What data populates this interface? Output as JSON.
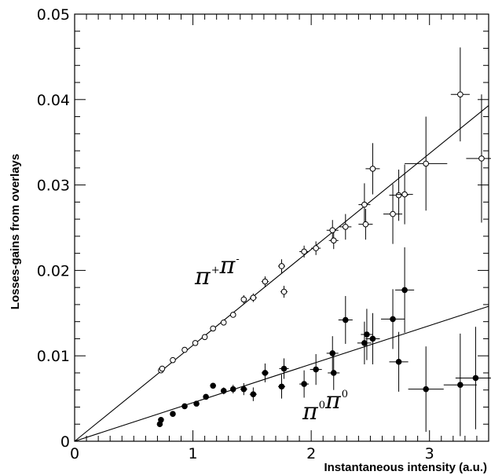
{
  "chart_data": {
    "type": "scatter",
    "title": "",
    "xlabel": "Instantaneous intensity (a.u.)",
    "ylabel": "Losses-gains from overlays",
    "xlim": [
      0,
      3.5
    ],
    "ylim": [
      0,
      0.05
    ],
    "x_ticks": [
      "0",
      "1",
      "2",
      "3"
    ],
    "y_ticks": [
      "0",
      "0.01",
      "0.02",
      "0.03",
      "0.04",
      "0.05"
    ],
    "x_tick_values": [
      0,
      1,
      2,
      3
    ],
    "y_tick_values": [
      0,
      0.01,
      0.02,
      0.03,
      0.04,
      0.05
    ],
    "grid": false,
    "series": [
      {
        "name": "π⁺π⁻",
        "label_main": [
          "π",
          "π"
        ],
        "label_sup": [
          "+",
          "-"
        ],
        "marker": "open-circle",
        "fit_line": [
          [
            0,
            0
          ],
          [
            3.5,
            0.0393
          ]
        ],
        "points": [
          {
            "x": 0.73,
            "y": 0.0083,
            "xerr": 0.02,
            "yerr": 0.0003
          },
          {
            "x": 0.74,
            "y": 0.0085,
            "xerr": 0.02,
            "yerr": 0.0003
          },
          {
            "x": 0.83,
            "y": 0.0095,
            "xerr": 0.02,
            "yerr": 0.0003
          },
          {
            "x": 0.93,
            "y": 0.0107,
            "xerr": 0.02,
            "yerr": 0.0003
          },
          {
            "x": 1.02,
            "y": 0.0115,
            "xerr": 0.02,
            "yerr": 0.0003
          },
          {
            "x": 1.1,
            "y": 0.0122,
            "xerr": 0.02,
            "yerr": 0.0003
          },
          {
            "x": 1.17,
            "y": 0.0132,
            "xerr": 0.02,
            "yerr": 0.0003
          },
          {
            "x": 1.26,
            "y": 0.0139,
            "xerr": 0.02,
            "yerr": 0.0003
          },
          {
            "x": 1.34,
            "y": 0.0148,
            "xerr": 0.02,
            "yerr": 0.0003
          },
          {
            "x": 1.43,
            "y": 0.0166,
            "xerr": 0.02,
            "yerr": 0.0005
          },
          {
            "x": 1.51,
            "y": 0.0168,
            "xerr": 0.03,
            "yerr": 0.0005
          },
          {
            "x": 1.61,
            "y": 0.0187,
            "xerr": 0.03,
            "yerr": 0.0006
          },
          {
            "x": 1.75,
            "y": 0.0205,
            "xerr": 0.03,
            "yerr": 0.0008
          },
          {
            "x": 1.77,
            "y": 0.0175,
            "xerr": 0.03,
            "yerr": 0.0007
          },
          {
            "x": 1.94,
            "y": 0.0222,
            "xerr": 0.04,
            "yerr": 0.0007
          },
          {
            "x": 2.04,
            "y": 0.0226,
            "xerr": 0.04,
            "yerr": 0.0008
          },
          {
            "x": 2.18,
            "y": 0.0247,
            "xerr": 0.05,
            "yerr": 0.0012
          },
          {
            "x": 2.19,
            "y": 0.0235,
            "xerr": 0.04,
            "yerr": 0.001
          },
          {
            "x": 2.29,
            "y": 0.0251,
            "xerr": 0.05,
            "yerr": 0.0015
          },
          {
            "x": 2.45,
            "y": 0.0277,
            "xerr": 0.05,
            "yerr": 0.0025
          },
          {
            "x": 2.46,
            "y": 0.0254,
            "xerr": 0.06,
            "yerr": 0.0018
          },
          {
            "x": 2.52,
            "y": 0.0319,
            "xerr": 0.06,
            "yerr": 0.003
          },
          {
            "x": 2.69,
            "y": 0.0266,
            "xerr": 0.08,
            "yerr": 0.0035
          },
          {
            "x": 2.74,
            "y": 0.0288,
            "xerr": 0.08,
            "yerr": 0.003
          },
          {
            "x": 2.79,
            "y": 0.0289,
            "xerr": 0.07,
            "yerr": 0.0035
          },
          {
            "x": 2.97,
            "y": 0.0325,
            "xerr": 0.18,
            "yerr": 0.0055
          },
          {
            "x": 3.26,
            "y": 0.0406,
            "xerr": 0.08,
            "yerr": 0.0055
          },
          {
            "x": 3.44,
            "y": 0.0331,
            "xerr": 0.13,
            "yerr": 0.0075
          }
        ]
      },
      {
        "name": "π⁰π⁰",
        "label_main": [
          "π",
          "π"
        ],
        "label_sup": [
          "0",
          "0"
        ],
        "marker": "filled-circle",
        "fit_line": [
          [
            0,
            0
          ],
          [
            3.5,
            0.0158
          ]
        ],
        "points": [
          {
            "x": 0.72,
            "y": 0.002,
            "xerr": 0.02,
            "yerr": 0.0003
          },
          {
            "x": 0.73,
            "y": 0.0025,
            "xerr": 0.02,
            "yerr": 0.0003
          },
          {
            "x": 0.83,
            "y": 0.0032,
            "xerr": 0.02,
            "yerr": 0.0003
          },
          {
            "x": 0.93,
            "y": 0.0041,
            "xerr": 0.02,
            "yerr": 0.0003
          },
          {
            "x": 1.03,
            "y": 0.0044,
            "xerr": 0.02,
            "yerr": 0.0003
          },
          {
            "x": 1.11,
            "y": 0.0052,
            "xerr": 0.02,
            "yerr": 0.0003
          },
          {
            "x": 1.17,
            "y": 0.0065,
            "xerr": 0.02,
            "yerr": 0.0003
          },
          {
            "x": 1.26,
            "y": 0.0059,
            "xerr": 0.02,
            "yerr": 0.0004
          },
          {
            "x": 1.34,
            "y": 0.0061,
            "xerr": 0.02,
            "yerr": 0.0005
          },
          {
            "x": 1.43,
            "y": 0.0061,
            "xerr": 0.03,
            "yerr": 0.0007
          },
          {
            "x": 1.51,
            "y": 0.0055,
            "xerr": 0.03,
            "yerr": 0.0008
          },
          {
            "x": 1.61,
            "y": 0.008,
            "xerr": 0.03,
            "yerr": 0.0011
          },
          {
            "x": 1.75,
            "y": 0.0064,
            "xerr": 0.03,
            "yerr": 0.0014
          },
          {
            "x": 1.77,
            "y": 0.0085,
            "xerr": 0.04,
            "yerr": 0.0012
          },
          {
            "x": 1.94,
            "y": 0.0067,
            "xerr": 0.04,
            "yerr": 0.0016
          },
          {
            "x": 2.04,
            "y": 0.0084,
            "xerr": 0.05,
            "yerr": 0.0018
          },
          {
            "x": 2.18,
            "y": 0.0103,
            "xerr": 0.05,
            "yerr": 0.002
          },
          {
            "x": 2.19,
            "y": 0.008,
            "xerr": 0.05,
            "yerr": 0.002
          },
          {
            "x": 2.29,
            "y": 0.0142,
            "xerr": 0.06,
            "yerr": 0.0028
          },
          {
            "x": 2.45,
            "y": 0.0115,
            "xerr": 0.06,
            "yerr": 0.0025
          },
          {
            "x": 2.47,
            "y": 0.0125,
            "xerr": 0.05,
            "yerr": 0.003
          },
          {
            "x": 2.52,
            "y": 0.012,
            "xerr": 0.06,
            "yerr": 0.003
          },
          {
            "x": 2.69,
            "y": 0.0143,
            "xerr": 0.1,
            "yerr": 0.0035
          },
          {
            "x": 2.74,
            "y": 0.0093,
            "xerr": 0.08,
            "yerr": 0.0035
          },
          {
            "x": 2.79,
            "y": 0.0177,
            "xerr": 0.08,
            "yerr": 0.005
          },
          {
            "x": 2.97,
            "y": 0.0061,
            "xerr": 0.15,
            "yerr": 0.005
          },
          {
            "x": 3.26,
            "y": 0.0066,
            "xerr": 0.14,
            "yerr": 0.006
          },
          {
            "x": 3.39,
            "y": 0.0074,
            "xerr": 0.17,
            "yerr": 0.006
          }
        ]
      }
    ]
  }
}
